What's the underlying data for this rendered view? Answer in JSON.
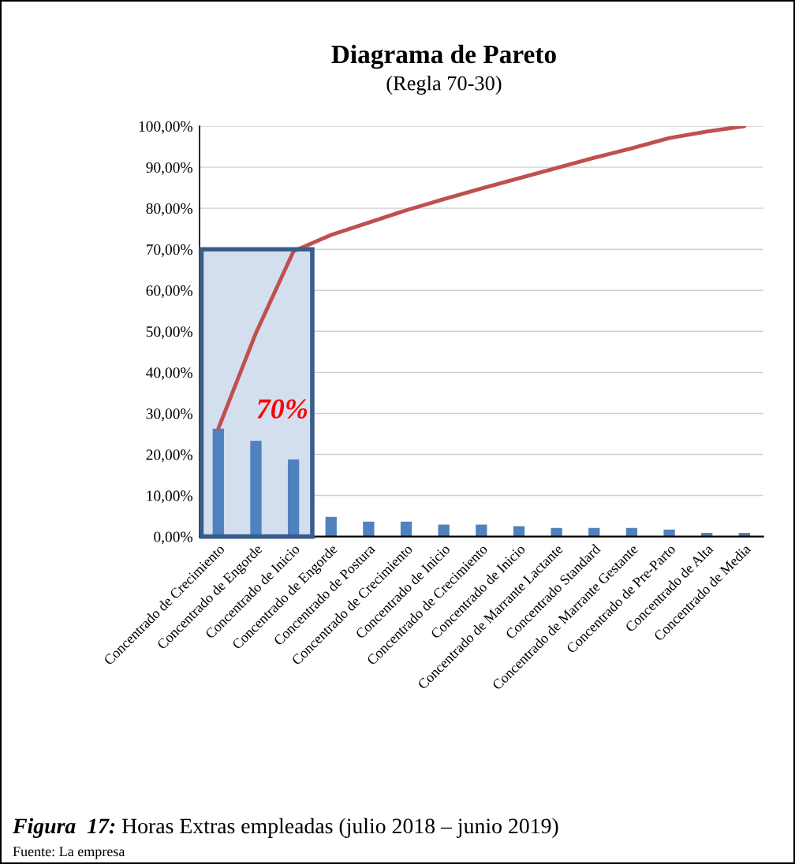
{
  "chart_data": {
    "type": "bar",
    "title": "Diagrama de Pareto",
    "subtitle": "(Regla 70-30)",
    "categories": [
      "Concentrado de Crecimiento",
      "Concentrado de Engorde",
      "Concentrado de Inicio",
      "Concentrado de Engorde",
      "Concentrado de Postura",
      "Concentrado de Crecimiento",
      "Concentrado de Inicio",
      "Concentrado de Crecimiento",
      "Concentrado de Inicio",
      "Concentrado de Marrante Lactante",
      "Concentrado Standard",
      "Concentrado de Marrante Gestante",
      "Concentrado de Pre-Parto",
      "Concentrado de Alta",
      "Concentrado de Media"
    ],
    "series": [
      {
        "color": "#4f81bd",
        "values": [
          26.3,
          23.3,
          18.8,
          4.8,
          3.6,
          3.6,
          2.9,
          2.9,
          2.5,
          2.1,
          2.1,
          2.1,
          1.7,
          0.9,
          0.9
        ]
      },
      {
        "type": "line",
        "color": "#c0504d",
        "values": [
          26.3,
          49.6,
          69.5,
          73.5,
          76.5,
          79.5,
          82.2,
          84.8,
          87.3,
          89.8,
          92.3,
          94.6,
          97.1,
          98.7,
          100
        ]
      }
    ],
    "ylim": [
      0,
      100
    ],
    "yticks": [
      {
        "value": 0,
        "label": "0,00%"
      },
      {
        "value": 10,
        "label": "10,00%"
      },
      {
        "value": 20,
        "label": "20,00%"
      },
      {
        "value": 30,
        "label": "30,00%"
      },
      {
        "value": 40,
        "label": "40,00%"
      },
      {
        "value": 50,
        "label": "50,00%"
      },
      {
        "value": 60,
        "label": "60,00%"
      },
      {
        "value": 70,
        "label": "70,00%"
      },
      {
        "value": 80,
        "label": "80,00%"
      },
      {
        "value": 90,
        "label": "90,00%"
      },
      {
        "value": 100,
        "label": "100,00%"
      }
    ],
    "grid": "y",
    "legend": false,
    "marker": "none",
    "line_style": "solid",
    "annotations": [
      "70%",
      "Figura  17: Horas Extras empleadas (julio 2018 – junio 2019)",
      "Fuente: La empresa"
    ]
  }
}
